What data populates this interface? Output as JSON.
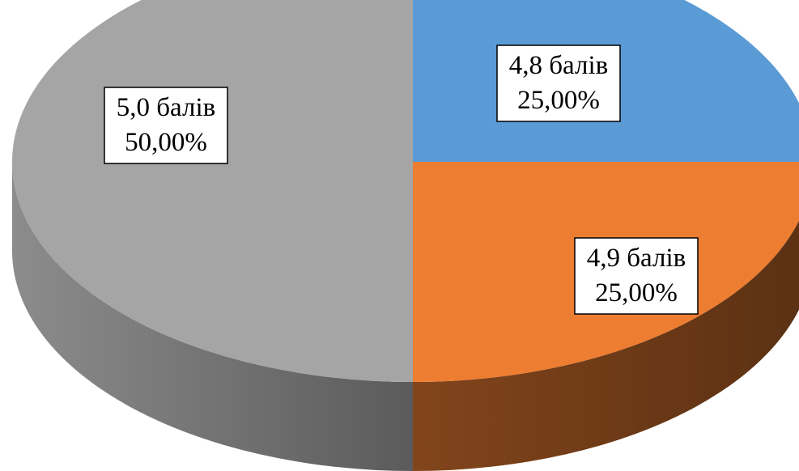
{
  "chart_data": {
    "type": "pie",
    "style": "3d",
    "title": "",
    "slices": [
      {
        "label": "4,8 балів",
        "value": 25.0,
        "percent_text": "25,00%",
        "color": "#5B9BD5"
      },
      {
        "label": "4,9 балів",
        "value": 25.0,
        "percent_text": "25,00%",
        "color": "#ED7D31"
      },
      {
        "label": "5,0 балів",
        "value": 50.0,
        "percent_text": "50,00%",
        "color": "#A5A5A5"
      }
    ],
    "legend": "none"
  }
}
